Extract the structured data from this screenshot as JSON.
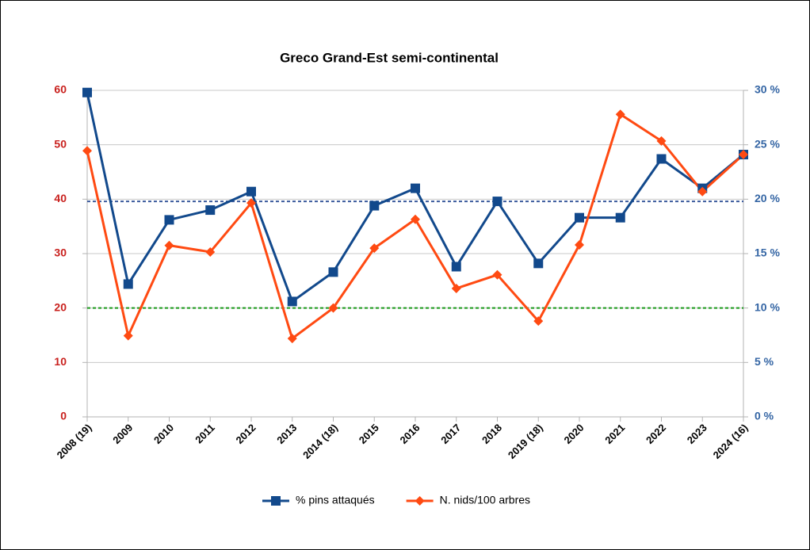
{
  "chart_data": {
    "type": "line",
    "title": "Greco Grand-Est semi-continental",
    "categories": [
      "2008 (19)",
      "2009",
      "2010",
      "2011",
      "2012",
      "2013",
      "2014 (18)",
      "2015",
      "2016",
      "2017",
      "2018",
      "2019 (18)",
      "2020",
      "2021",
      "2022",
      "2023",
      "2024 (16)"
    ],
    "series": [
      {
        "name": "% pins attaqués",
        "color": "#12498c",
        "axis": "y2",
        "marker": "square",
        "values": [
          29.8,
          12.2,
          18.1,
          19.0,
          20.7,
          10.6,
          13.3,
          19.4,
          21.0,
          13.8,
          19.8,
          14.1,
          18.3,
          18.3,
          23.7,
          21.0,
          24.1
        ]
      },
      {
        "name": "N. nids/100 arbres",
        "color": "#ff4a12",
        "axis": "y",
        "marker": "diamond",
        "values": [
          48.9,
          14.9,
          31.5,
          30.3,
          39.3,
          14.4,
          20.0,
          31.0,
          36.3,
          23.6,
          26.1,
          17.6,
          31.6,
          55.6,
          50.7,
          41.4,
          48.2
        ]
      }
    ],
    "reference_lines": [
      {
        "value": 19.8,
        "axis": "y2",
        "color": "#3a5a9c"
      },
      {
        "value": 20,
        "axis": "y",
        "color": "#1a9a1a"
      }
    ],
    "ylim": [
      0,
      60
    ],
    "yticks": [
      0,
      10,
      20,
      30,
      40,
      50,
      60
    ],
    "y_color": "#c9211e",
    "y2lim": [
      0,
      30
    ],
    "y2ticks": [
      {
        "value": 0,
        "label": "0 %"
      },
      {
        "value": 5,
        "label": "5 %"
      },
      {
        "value": 10,
        "label": "10 %"
      },
      {
        "value": 15,
        "label": "15 %"
      },
      {
        "value": 20,
        "label": "20 %"
      },
      {
        "value": 25,
        "label": "25 %"
      },
      {
        "value": 30,
        "label": "30 %"
      }
    ],
    "y2_color": "#3465a4",
    "grid": true,
    "legend": "bottom"
  }
}
